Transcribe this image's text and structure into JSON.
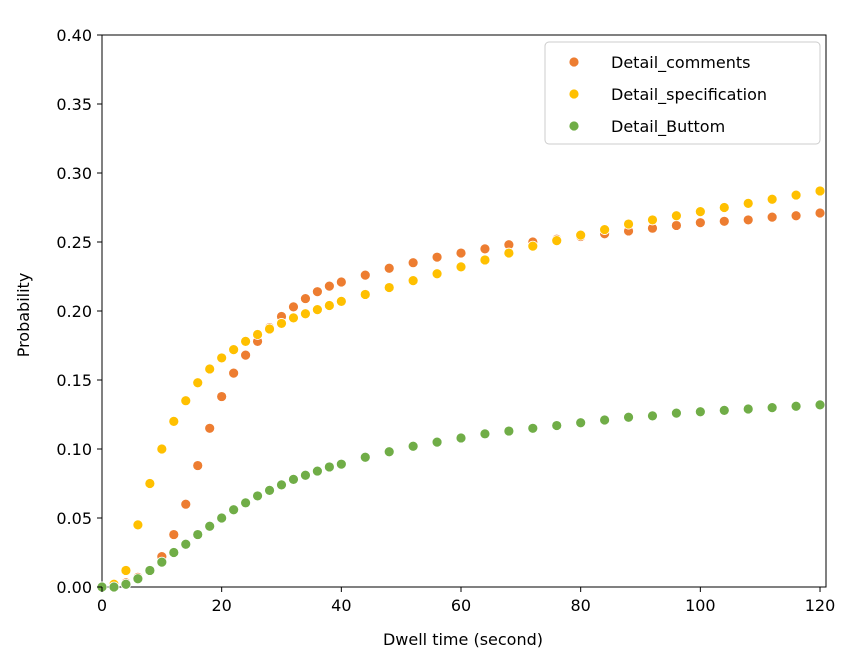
{
  "chart_data": {
    "type": "scatter",
    "xlabel": "Dwell time (second)",
    "ylabel": "Probability",
    "xlim": [
      0,
      121
    ],
    "ylim": [
      0,
      0.4
    ],
    "x_ticks": [
      0,
      20,
      40,
      60,
      80,
      100,
      120
    ],
    "x_tick_labels": [
      "0",
      "20",
      "40",
      "60",
      "80",
      "100",
      "120"
    ],
    "y_ticks": [
      0.0,
      0.05,
      0.1,
      0.15,
      0.2,
      0.25,
      0.3,
      0.35,
      0.4
    ],
    "y_tick_labels": [
      "0.00",
      "0.05",
      "0.10",
      "0.15",
      "0.20",
      "0.25",
      "0.30",
      "0.35",
      "0.40"
    ],
    "grid": false,
    "legend_position": "top-right",
    "series": [
      {
        "name": "Detail_comments",
        "color": "#ed7d31",
        "x": [
          0,
          2,
          4,
          6,
          8,
          10,
          12,
          14,
          16,
          18,
          20,
          22,
          24,
          26,
          28,
          30,
          32,
          34,
          36,
          38,
          40,
          44,
          48,
          52,
          56,
          60,
          64,
          68,
          72,
          76,
          80,
          84,
          88,
          92,
          96,
          100,
          104,
          108,
          112,
          116,
          120
        ],
        "y": [
          0,
          0,
          0.003,
          0.007,
          0.012,
          0.022,
          0.038,
          0.06,
          0.088,
          0.115,
          0.138,
          0.155,
          0.168,
          0.178,
          0.188,
          0.196,
          0.203,
          0.209,
          0.214,
          0.218,
          0.221,
          0.226,
          0.231,
          0.235,
          0.239,
          0.242,
          0.245,
          0.248,
          0.25,
          0.252,
          0.254,
          0.256,
          0.258,
          0.26,
          0.262,
          0.264,
          0.265,
          0.266,
          0.268,
          0.269,
          0.271
        ]
      },
      {
        "name": "Detail_specification",
        "color": "#ffc000",
        "x": [
          0,
          2,
          4,
          6,
          8,
          10,
          12,
          14,
          16,
          18,
          20,
          22,
          24,
          26,
          28,
          30,
          32,
          34,
          36,
          38,
          40,
          44,
          48,
          52,
          56,
          60,
          64,
          68,
          72,
          76,
          80,
          84,
          88,
          92,
          96,
          100,
          104,
          108,
          112,
          116,
          120
        ],
        "y": [
          0,
          0.002,
          0.012,
          0.045,
          0.075,
          0.1,
          0.12,
          0.135,
          0.148,
          0.158,
          0.166,
          0.172,
          0.178,
          0.183,
          0.187,
          0.191,
          0.195,
          0.198,
          0.201,
          0.204,
          0.207,
          0.212,
          0.217,
          0.222,
          0.227,
          0.232,
          0.237,
          0.242,
          0.247,
          0.251,
          0.255,
          0.259,
          0.263,
          0.266,
          0.269,
          0.272,
          0.275,
          0.278,
          0.281,
          0.284,
          0.287
        ]
      },
      {
        "name": "Detail_Buttom",
        "color": "#70ad47",
        "x": [
          0,
          2,
          4,
          6,
          8,
          10,
          12,
          14,
          16,
          18,
          20,
          22,
          24,
          26,
          28,
          30,
          32,
          34,
          36,
          38,
          40,
          44,
          48,
          52,
          56,
          60,
          64,
          68,
          72,
          76,
          80,
          84,
          88,
          92,
          96,
          100,
          104,
          108,
          112,
          116,
          120
        ],
        "y": [
          0,
          0,
          0.002,
          0.006,
          0.012,
          0.018,
          0.025,
          0.031,
          0.038,
          0.044,
          0.05,
          0.056,
          0.061,
          0.066,
          0.07,
          0.074,
          0.078,
          0.081,
          0.084,
          0.087,
          0.089,
          0.094,
          0.098,
          0.102,
          0.105,
          0.108,
          0.111,
          0.113,
          0.115,
          0.117,
          0.119,
          0.121,
          0.123,
          0.124,
          0.126,
          0.127,
          0.128,
          0.129,
          0.13,
          0.131,
          0.132
        ]
      }
    ]
  }
}
